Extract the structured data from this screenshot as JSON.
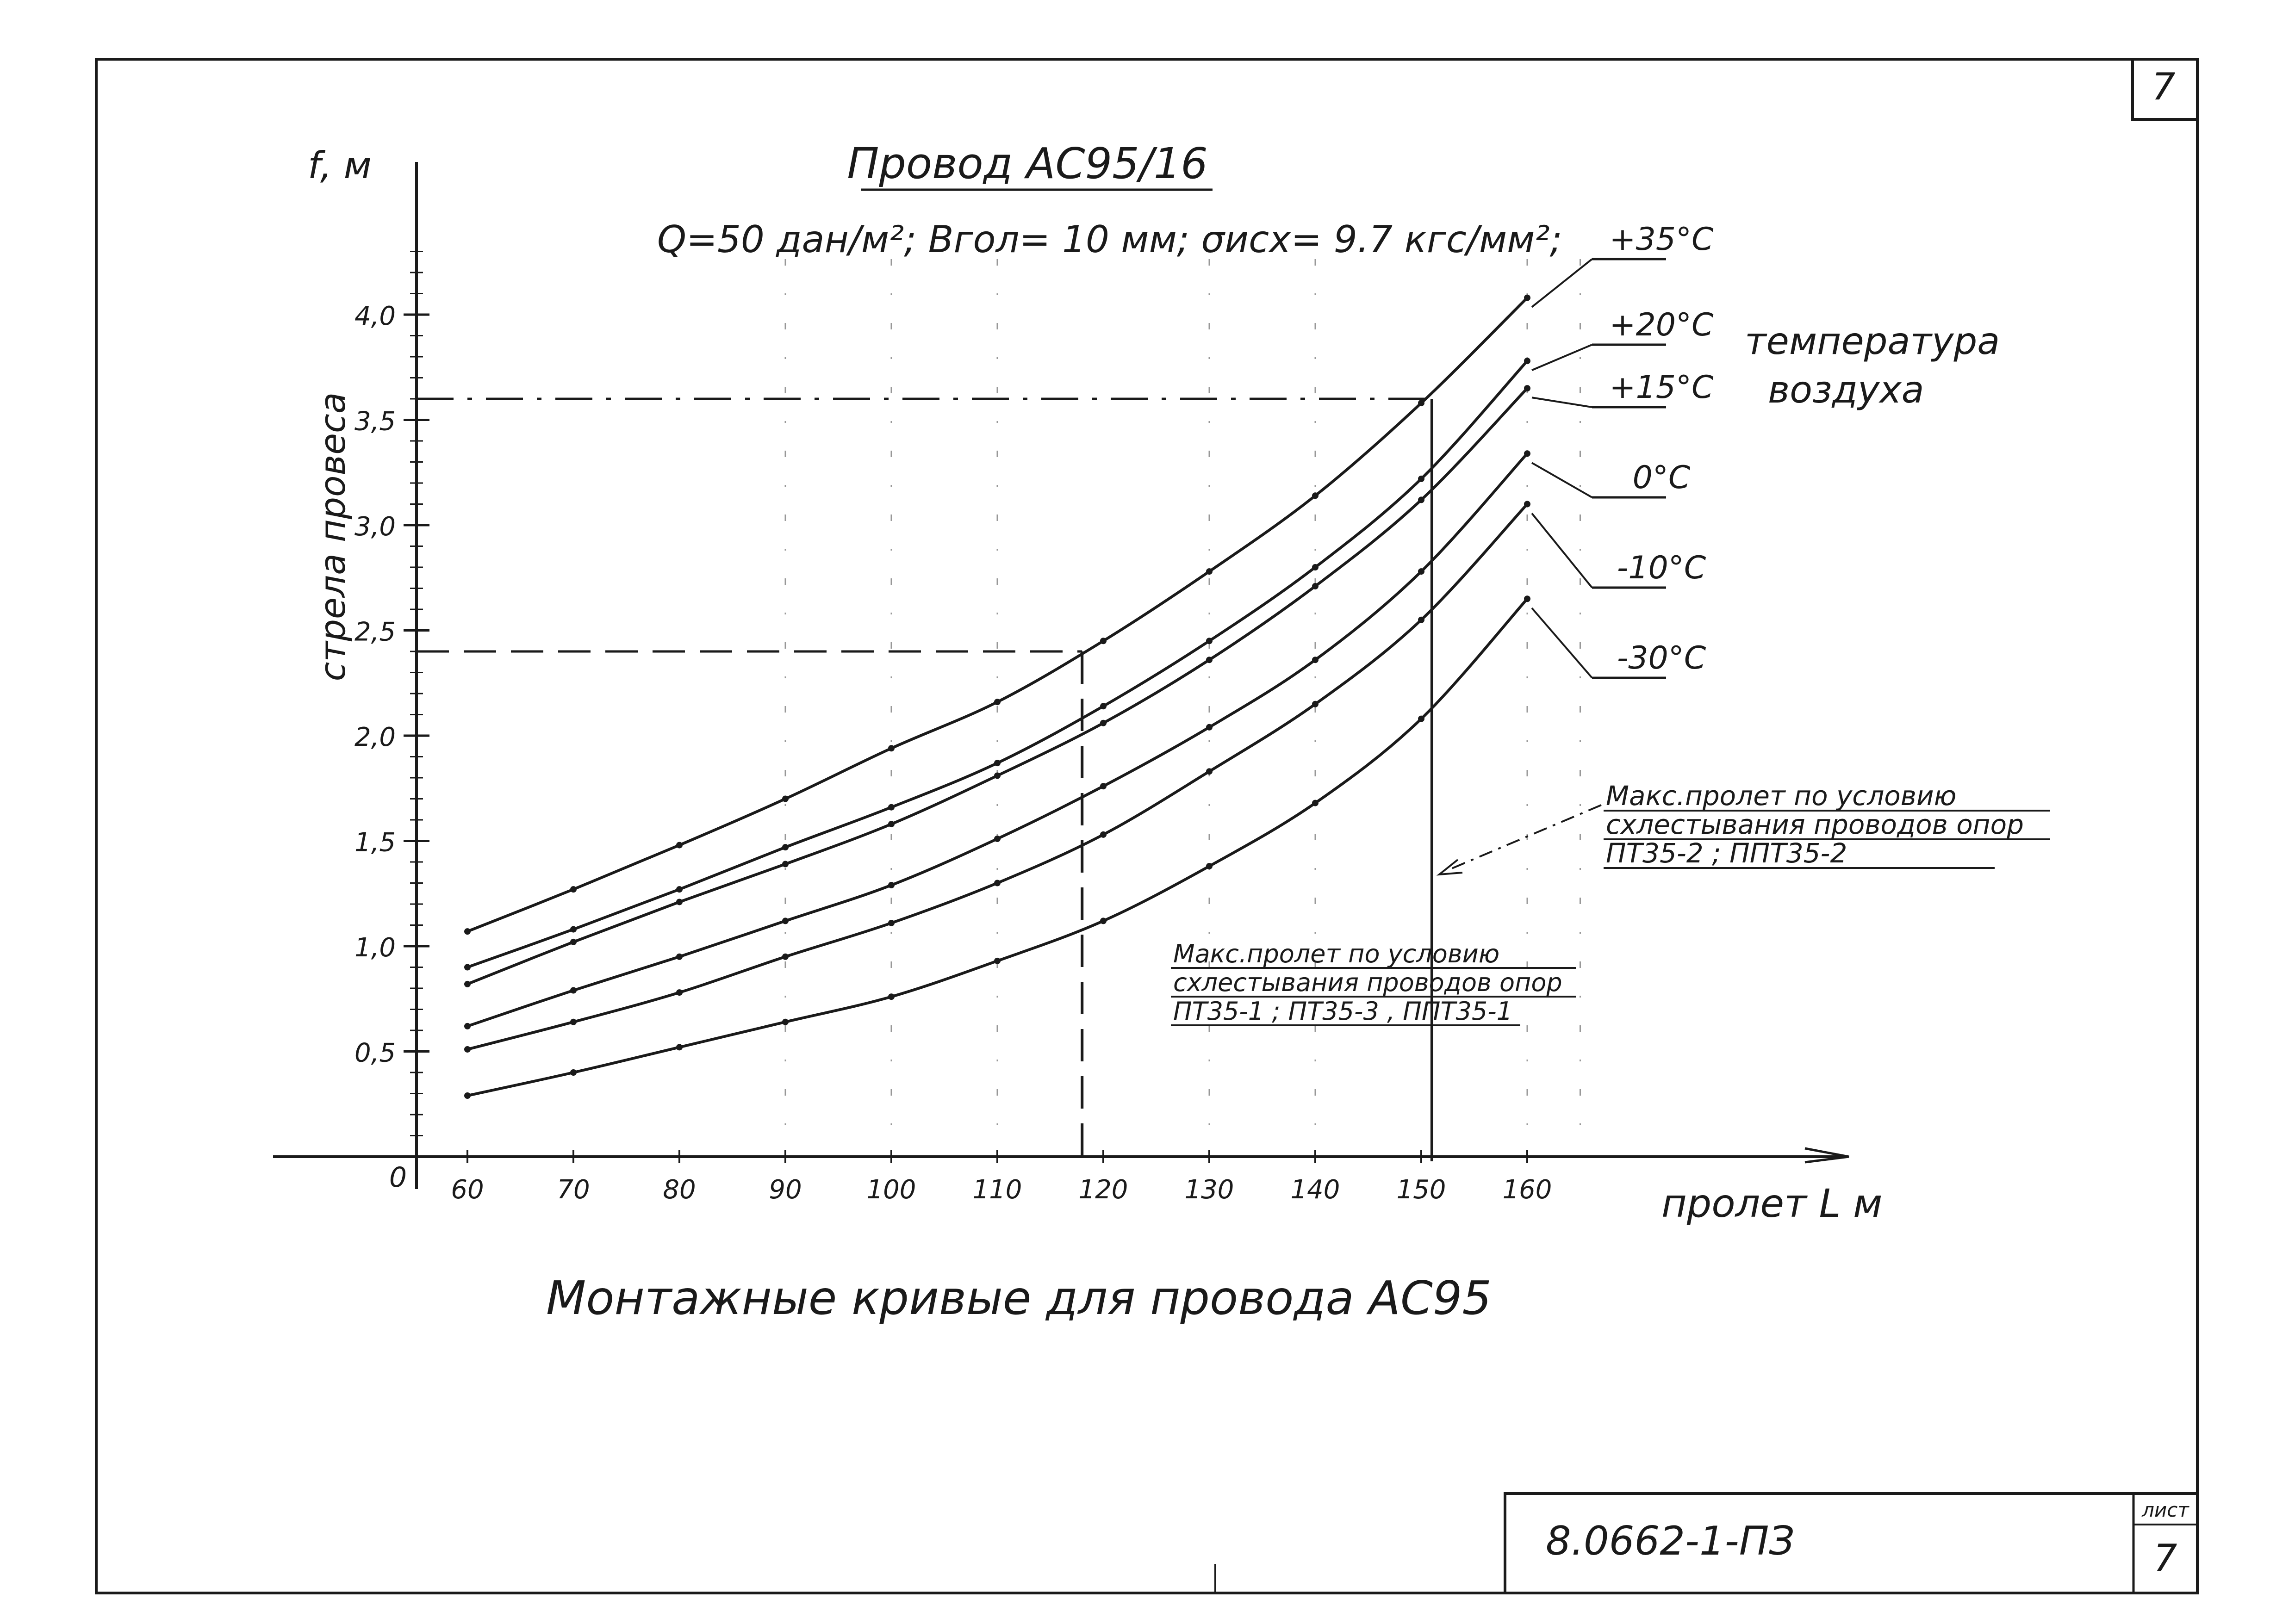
{
  "sheet": {
    "corner_number": "7",
    "doc_code": "8.0662-1-ПЗ",
    "sheet_label": "лист",
    "sheet_number": "7"
  },
  "chart_data": {
    "type": "line",
    "title": "Провод АС95/16",
    "subtitle": "Q=50 дан/м²;  Вгол= 10 мм;  σисх= 9.7 кгс/мм²;",
    "caption": "Монтажные кривые для провода АС95",
    "xlabel": "пролет  L м",
    "ylabel": "стрела провеса",
    "yaxis_symbol": "f, м",
    "origin_label": "0",
    "x_ticks": [
      60,
      70,
      80,
      90,
      100,
      110,
      120,
      130,
      140,
      150,
      160
    ],
    "y_ticks": [
      "0,5",
      "1,0",
      "1,5",
      "2,0",
      "2,5",
      "3,0",
      "3,5",
      "4,0"
    ],
    "y_tick_values": [
      0.5,
      1.0,
      1.5,
      2.0,
      2.5,
      3.0,
      3.5,
      4.0
    ],
    "xlim": [
      55,
      170
    ],
    "ylim": [
      0,
      4.5
    ],
    "legend_title": "температура воздуха",
    "series": [
      {
        "name": "+35°C",
        "x": [
          60,
          70,
          80,
          90,
          100,
          110,
          120,
          130,
          140,
          150,
          160
        ],
        "y": [
          1.07,
          1.27,
          1.48,
          1.7,
          1.94,
          2.16,
          2.45,
          2.78,
          3.14,
          3.58,
          4.08
        ]
      },
      {
        "name": "+20°C",
        "x": [
          60,
          70,
          80,
          90,
          100,
          110,
          120,
          130,
          140,
          150,
          160
        ],
        "y": [
          0.9,
          1.08,
          1.27,
          1.47,
          1.66,
          1.87,
          2.14,
          2.45,
          2.8,
          3.22,
          3.78
        ]
      },
      {
        "name": "+15°C",
        "x": [
          60,
          70,
          80,
          90,
          100,
          110,
          120,
          130,
          140,
          150,
          160
        ],
        "y": [
          0.82,
          1.02,
          1.21,
          1.39,
          1.58,
          1.81,
          2.06,
          2.36,
          2.71,
          3.12,
          3.65
        ]
      },
      {
        "name": "0°C",
        "x": [
          60,
          70,
          80,
          90,
          100,
          110,
          120,
          130,
          140,
          150,
          160
        ],
        "y": [
          0.62,
          0.79,
          0.95,
          1.12,
          1.29,
          1.51,
          1.76,
          2.04,
          2.36,
          2.78,
          3.34
        ]
      },
      {
        "name": "-10°C",
        "x": [
          60,
          70,
          80,
          90,
          100,
          110,
          120,
          130,
          140,
          150,
          160
        ],
        "y": [
          0.51,
          0.64,
          0.78,
          0.95,
          1.11,
          1.3,
          1.53,
          1.83,
          2.15,
          2.55,
          3.1
        ]
      },
      {
        "name": "-30°C",
        "x": [
          60,
          70,
          80,
          90,
          100,
          110,
          120,
          130,
          140,
          150,
          160
        ],
        "y": [
          0.29,
          0.4,
          0.52,
          0.64,
          0.76,
          0.93,
          1.12,
          1.38,
          1.68,
          2.08,
          2.65
        ]
      }
    ],
    "reference_lines": [
      {
        "x": 118,
        "y": 2.4,
        "style": "dashed"
      },
      {
        "x": 151,
        "y": 3.6,
        "style": "dash-dot"
      }
    ],
    "annotations": [
      {
        "lines": [
          "Макс.пролет по условию",
          "схлестывания проводов опор",
          "ПТ35-1 ; ПТ35-3 , ППТ35-1"
        ],
        "points_to_x": 118
      },
      {
        "lines": [
          "Макс.пролет по условию",
          "схлестывания проводов опор",
          "ПТ35-2  ;  ППТ35-2"
        ],
        "points_to_x": 151
      }
    ],
    "grid": "dash-dot vertical guides at 90–160",
    "legend_position": "right"
  }
}
